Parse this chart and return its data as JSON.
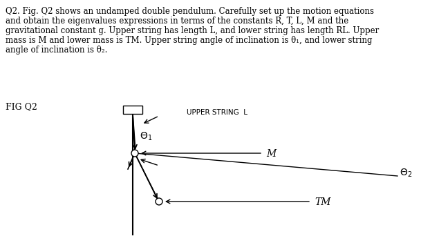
{
  "background_color": "#ffffff",
  "text_color": "#000000",
  "body_text_line1": "Q2. Fig. Q2 shows an undamped double pendulum. Carefully set up the motion equations",
  "body_text_line2": "and obtain the eigenvalues expressions in terms of the constants R, T, L, M and the",
  "body_text_line3": "gravitational constant g. Upper string has length L, and lower string has length RL. Upper",
  "body_text_line4": "mass is M and lower mass is TM. Upper string angle of inclination is θ₁, and lower string",
  "body_text_line5": "angle of inclination is θ₂.",
  "fig_label": "FIG Q2",
  "upper_string_label": "UPPER STRING  L",
  "mass_label_M": "M",
  "mass_label_TM": "TM",
  "theta1_label": "θ1",
  "theta2_label": "θ2",
  "font_size_body": 8.5,
  "font_size_diagram": 9,
  "font_size_fig_label": 9
}
